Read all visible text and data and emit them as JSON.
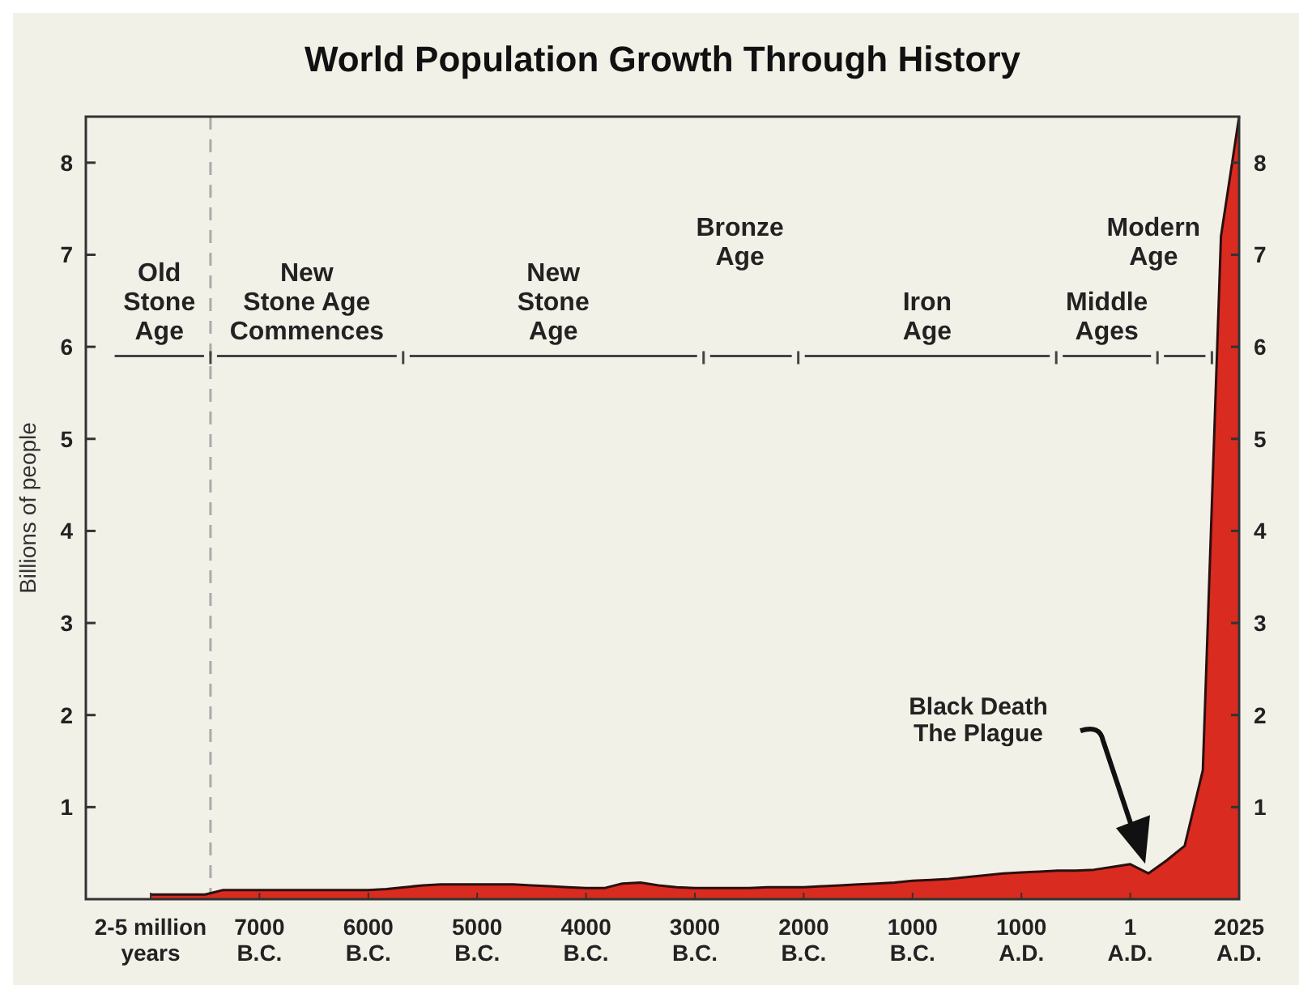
{
  "chart_data": {
    "type": "area",
    "title": "World Population Growth Through History",
    "ylabel": "Billions of people",
    "categories": [
      "2-5 million\nyears",
      null,
      null,
      null,
      null,
      null,
      "7000\nB.C.",
      null,
      null,
      null,
      null,
      null,
      "6000\nB.C.",
      null,
      null,
      null,
      null,
      null,
      "5000\nB.C.",
      null,
      null,
      null,
      null,
      null,
      "4000\nB.C.",
      null,
      null,
      null,
      null,
      null,
      "3000\nB.C.",
      null,
      null,
      null,
      null,
      null,
      "2000\nB.C.",
      null,
      null,
      null,
      null,
      null,
      "1000\nB.C.",
      null,
      null,
      null,
      null,
      null,
      "1000\nA.D.",
      null,
      null,
      null,
      null,
      null,
      "1\nA.D.",
      null,
      null,
      null,
      null,
      null,
      "2025\nA.D."
    ],
    "series": [
      {
        "color": "#d92b1f",
        "values": [
          0.05,
          0.05,
          0.05,
          0.05,
          0.1,
          0.1,
          0.1,
          0.1,
          0.1,
          0.1,
          0.1,
          0.1,
          0.1,
          0.11,
          0.13,
          0.15,
          0.16,
          0.16,
          0.16,
          0.16,
          0.16,
          0.15,
          0.14,
          0.13,
          0.12,
          0.12,
          0.17,
          0.18,
          0.15,
          0.13,
          0.12,
          0.12,
          0.12,
          0.12,
          0.13,
          0.13,
          0.13,
          0.14,
          0.15,
          0.16,
          0.17,
          0.18,
          0.2,
          0.21,
          0.22,
          0.24,
          0.26,
          0.28,
          0.29,
          0.3,
          0.31,
          0.31,
          0.32,
          0.35,
          0.38,
          0.28,
          0.42,
          0.58,
          1.4,
          7.2,
          8.5
        ]
      }
    ],
    "ylim": [
      0,
      8.5
    ],
    "yticks": [
      1,
      2,
      3,
      4,
      5,
      6,
      7,
      8
    ],
    "y2lim": [
      0,
      8.5
    ],
    "y2ticks": [
      1,
      2,
      3,
      4,
      5,
      6,
      7,
      8
    ],
    "annotations": [
      "Old\nStone\nAge",
      "New\nStone Age\nCommences",
      "New\nStone\nAge",
      "Bronze\nAge",
      "Iron\nAge",
      "Middle\nAges",
      "Modern\nAge",
      "Black Death\nThe Plague"
    ]
  }
}
